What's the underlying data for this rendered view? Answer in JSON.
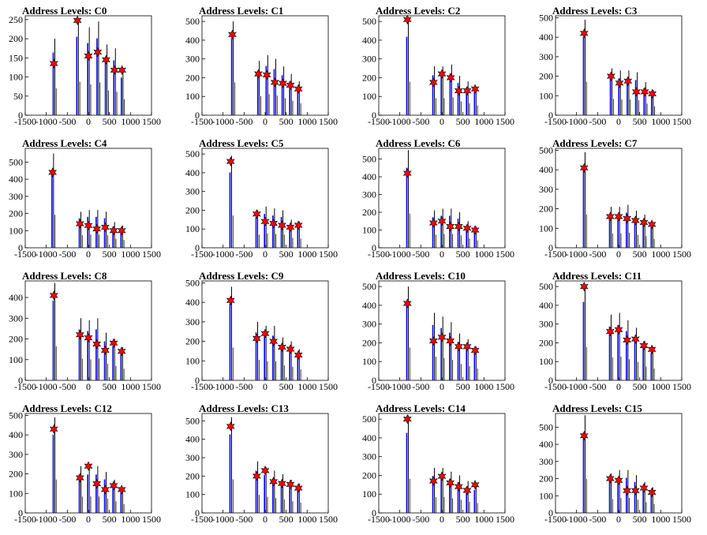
{
  "figure": {
    "title_prefix": "Address Levels: ",
    "x_axis": {
      "min": -1500,
      "max": 1500,
      "ticks": [
        -1500,
        -1000,
        -500,
        0,
        500,
        1000,
        1500
      ]
    },
    "colors": {
      "histogram": "#000000",
      "filled": "#0000ff",
      "marker": "#ff0000",
      "marker_edge": "#000000"
    }
  },
  "chart_data": [
    {
      "title": "Address Levels: C0",
      "type": "bar",
      "ylim": [
        0,
        260
      ],
      "yticks": [
        0,
        50,
        100,
        150,
        200,
        250
      ],
      "peaks_x": [
        -820,
        -260,
        0,
        220,
        420,
        620,
        800
      ],
      "bar_heights": [
        200,
        250,
        230,
        245,
        185,
        175,
        120
      ],
      "marker_y": [
        135,
        248,
        155,
        165,
        145,
        118,
        118
      ]
    },
    {
      "title": "Address Levels: C1",
      "type": "bar",
      "ylim": [
        0,
        530
      ],
      "yticks": [
        0,
        100,
        200,
        300,
        400,
        500
      ],
      "peaks_x": [
        -780,
        -160,
        40,
        230,
        420,
        600,
        790
      ],
      "bar_heights": [
        500,
        290,
        320,
        300,
        260,
        220,
        180
      ],
      "marker_y": [
        430,
        220,
        215,
        175,
        170,
        160,
        140
      ]
    },
    {
      "title": "Address Levels: C2",
      "type": "bar",
      "ylim": [
        0,
        530
      ],
      "yticks": [
        0,
        100,
        200,
        300,
        400,
        500
      ],
      "peaks_x": [
        -820,
        -200,
        0,
        210,
        400,
        600,
        790
      ],
      "bar_heights": [
        510,
        260,
        260,
        270,
        210,
        180,
        150
      ],
      "marker_y": [
        510,
        175,
        220,
        200,
        130,
        130,
        140
      ]
    },
    {
      "title": "Address Levels: C3",
      "type": "bar",
      "ylim": [
        0,
        510
      ],
      "yticks": [
        0,
        100,
        200,
        300,
        400,
        500
      ],
      "peaks_x": [
        -820,
        -180,
        20,
        220,
        420,
        620,
        800
      ],
      "bar_heights": [
        490,
        240,
        230,
        230,
        220,
        170,
        130
      ],
      "marker_y": [
        420,
        200,
        165,
        175,
        120,
        120,
        110
      ]
    },
    {
      "title": "Address Levels: C4",
      "type": "bar",
      "ylim": [
        0,
        580
      ],
      "yticks": [
        0,
        100,
        200,
        300,
        400,
        500
      ],
      "peaks_x": [
        -850,
        -200,
        0,
        200,
        400,
        600,
        790
      ],
      "bar_heights": [
        550,
        210,
        220,
        220,
        210,
        150,
        130
      ],
      "marker_y": [
        440,
        140,
        130,
        110,
        120,
        100,
        100
      ]
    },
    {
      "title": "Address Levels: C5",
      "type": "bar",
      "ylim": [
        0,
        530
      ],
      "yticks": [
        0,
        100,
        200,
        300,
        400,
        500
      ],
      "peaks_x": [
        -820,
        -200,
        0,
        200,
        400,
        600,
        790
      ],
      "bar_heights": [
        490,
        200,
        220,
        210,
        200,
        150,
        140
      ],
      "marker_y": [
        460,
        180,
        140,
        130,
        120,
        110,
        120
      ]
    },
    {
      "title": "Address Levels: C6",
      "type": "bar",
      "ylim": [
        0,
        560
      ],
      "yticks": [
        0,
        100,
        200,
        300,
        400,
        500
      ],
      "peaks_x": [
        -820,
        -200,
        0,
        200,
        400,
        600,
        790
      ],
      "bar_heights": [
        550,
        210,
        220,
        220,
        200,
        150,
        120
      ],
      "marker_y": [
        420,
        140,
        150,
        120,
        120,
        110,
        100
      ]
    },
    {
      "title": "Address Levels: C7",
      "type": "bar",
      "ylim": [
        0,
        510
      ],
      "yticks": [
        0,
        100,
        200,
        300,
        400,
        500
      ],
      "peaks_x": [
        -820,
        -200,
        0,
        200,
        400,
        600,
        790
      ],
      "bar_heights": [
        490,
        210,
        210,
        220,
        190,
        170,
        130
      ],
      "marker_y": [
        410,
        160,
        160,
        150,
        140,
        130,
        120
      ]
    },
    {
      "title": "Address Levels: C8",
      "type": "bar",
      "ylim": [
        0,
        480
      ],
      "yticks": [
        0,
        100,
        200,
        300,
        400
      ],
      "peaks_x": [
        -820,
        -200,
        0,
        200,
        400,
        600,
        790
      ],
      "bar_heights": [
        470,
        300,
        290,
        300,
        230,
        200,
        160
      ],
      "marker_y": [
        410,
        220,
        205,
        175,
        145,
        180,
        140
      ]
    },
    {
      "title": "Address Levels: C9",
      "type": "bar",
      "ylim": [
        0,
        510
      ],
      "yticks": [
        0,
        100,
        200,
        300,
        400,
        500
      ],
      "peaks_x": [
        -820,
        -200,
        0,
        200,
        400,
        600,
        790
      ],
      "bar_heights": [
        480,
        300,
        280,
        280,
        220,
        200,
        160
      ],
      "marker_y": [
        410,
        215,
        240,
        200,
        170,
        160,
        130
      ]
    },
    {
      "title": "Address Levels: C10",
      "type": "bar",
      "ylim": [
        0,
        530
      ],
      "yticks": [
        0,
        100,
        200,
        300,
        400,
        500
      ],
      "peaks_x": [
        -820,
        -200,
        0,
        200,
        400,
        600,
        790
      ],
      "bar_heights": [
        500,
        360,
        340,
        310,
        250,
        220,
        180
      ],
      "marker_y": [
        410,
        210,
        230,
        210,
        180,
        180,
        160
      ]
    },
    {
      "title": "Address Levels: C11",
      "type": "bar",
      "ylim": [
        0,
        530
      ],
      "yticks": [
        0,
        100,
        200,
        300,
        400,
        500
      ],
      "peaks_x": [
        -820,
        -200,
        0,
        200,
        400,
        600,
        790
      ],
      "bar_heights": [
        510,
        350,
        360,
        320,
        280,
        210,
        180
      ],
      "marker_y": [
        500,
        260,
        270,
        215,
        220,
        185,
        165
      ]
    },
    {
      "title": "Address Levels: C12",
      "type": "bar",
      "ylim": [
        0,
        510
      ],
      "yticks": [
        0,
        100,
        200,
        300,
        400,
        500
      ],
      "peaks_x": [
        -820,
        -200,
        0,
        200,
        400,
        600,
        790
      ],
      "bar_heights": [
        490,
        240,
        240,
        240,
        210,
        170,
        130
      ],
      "marker_y": [
        430,
        180,
        240,
        150,
        120,
        140,
        120
      ]
    },
    {
      "title": "Address Levels: C13",
      "type": "bar",
      "ylim": [
        0,
        540
      ],
      "yticks": [
        0,
        100,
        200,
        300,
        400,
        500
      ],
      "peaks_x": [
        -820,
        -200,
        0,
        200,
        400,
        600,
        790
      ],
      "bar_heights": [
        520,
        280,
        250,
        230,
        210,
        180,
        160
      ],
      "marker_y": [
        470,
        200,
        230,
        170,
        160,
        155,
        135
      ]
    },
    {
      "title": "Address Levels: C14",
      "type": "bar",
      "ylim": [
        0,
        530
      ],
      "yticks": [
        0,
        100,
        200,
        300,
        400,
        500
      ],
      "peaks_x": [
        -820,
        -200,
        0,
        200,
        400,
        600,
        790
      ],
      "bar_heights": [
        520,
        240,
        240,
        220,
        200,
        170,
        150
      ],
      "marker_y": [
        500,
        170,
        195,
        160,
        140,
        120,
        150
      ]
    },
    {
      "title": "Address Levels: C15",
      "type": "bar",
      "ylim": [
        0,
        580
      ],
      "yticks": [
        0,
        100,
        200,
        300,
        400,
        500
      ],
      "peaks_x": [
        -820,
        -200,
        0,
        200,
        400,
        600,
        790
      ],
      "bar_heights": [
        570,
        230,
        250,
        250,
        220,
        180,
        150
      ],
      "marker_y": [
        450,
        200,
        190,
        130,
        130,
        145,
        120
      ]
    }
  ]
}
